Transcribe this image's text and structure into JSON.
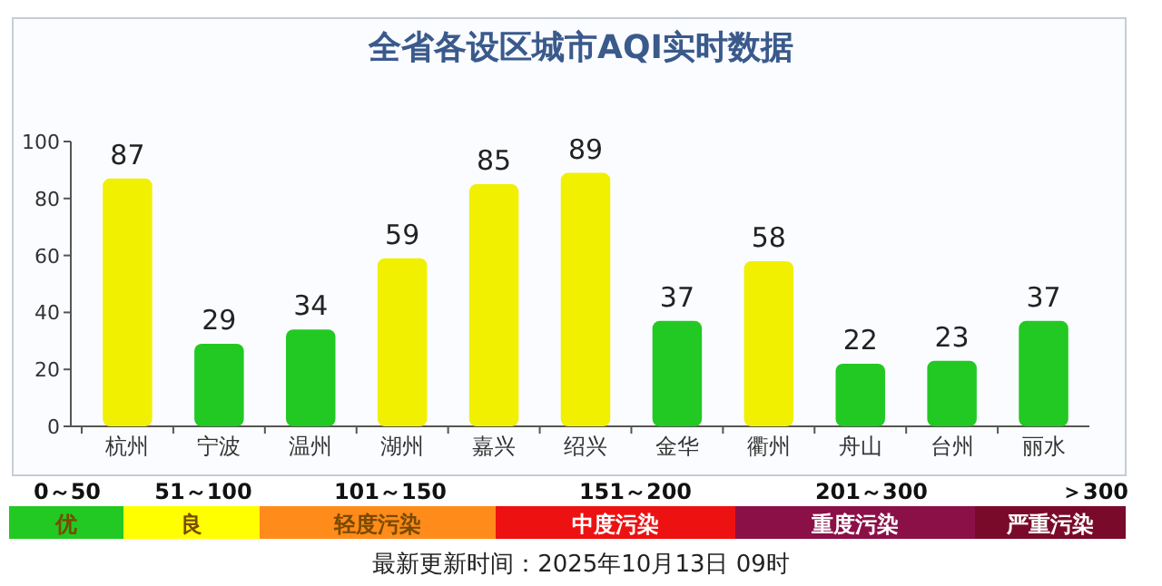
{
  "chart_data": [
    {
      "type": "bar",
      "title": "全省各设区城市AQI实时数据",
      "categories": [
        "杭州",
        "宁波",
        "温州",
        "湖州",
        "嘉兴",
        "绍兴",
        "金华",
        "衢州",
        "舟山",
        "台州",
        "丽水"
      ],
      "values": [
        87,
        29,
        34,
        59,
        85,
        89,
        37,
        58,
        22,
        23,
        37
      ],
      "colors": [
        "#f0f000",
        "#22c922",
        "#22c922",
        "#f0f000",
        "#f0f000",
        "#f0f000",
        "#22c922",
        "#f0f000",
        "#22c922",
        "#22c922",
        "#22c922"
      ],
      "ylim": [
        0,
        100
      ],
      "yticks": [
        0,
        20,
        40,
        60,
        80,
        100
      ],
      "data_labels": true
    },
    {
      "type": "other",
      "categories": [
        "优",
        "良",
        "轻度污染",
        "中度污染",
        "重度污染",
        "严重污染"
      ],
      "colors": [
        "#22c922",
        "#ffff00",
        "#ff8c1a",
        "#ee1111",
        "#8b1048",
        "#7a0a2a"
      ],
      "annotations": [
        "0～50",
        "51～100",
        "101～150",
        "151～200",
        "201～300",
        "＞300",
        "最新更新时间：2025年10月13日 09时"
      ]
    }
  ]
}
